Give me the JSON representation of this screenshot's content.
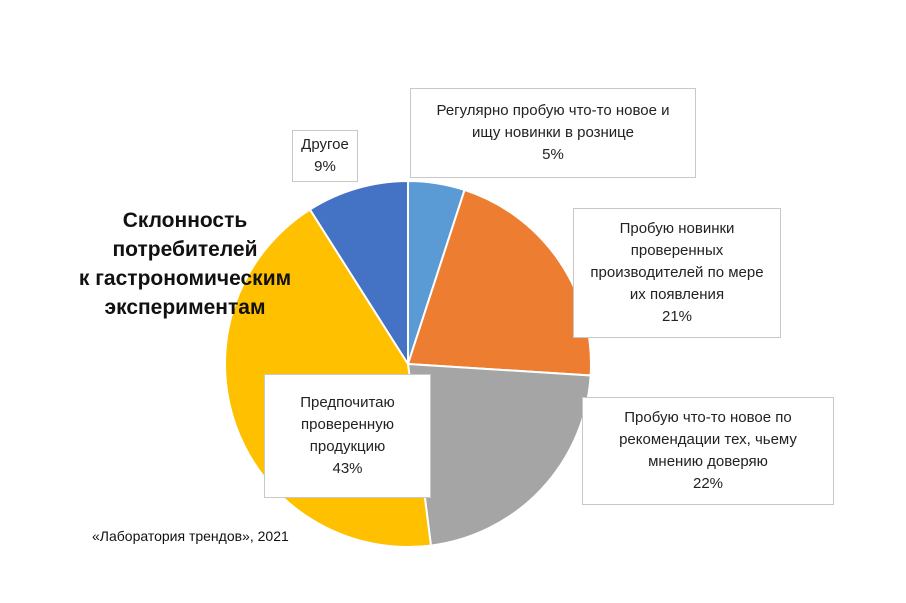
{
  "chart_data": {
    "type": "pie",
    "title_lines": [
      "Склонность",
      "потребителей",
      "к гастрономическим",
      "экспериментам"
    ],
    "source": "«Лаборатория трендов», 2021",
    "slices": [
      {
        "label_lines": [
          "Регулярно пробую что-то новое и",
          "ищу новинки в рознице"
        ],
        "value": 5,
        "value_label": "5%",
        "color": "#5B9BD5"
      },
      {
        "label_lines": [
          "Пробую новинки",
          "проверенных",
          "производителей по мере",
          "их появления"
        ],
        "value": 21,
        "value_label": "21%",
        "color": "#ED7D31"
      },
      {
        "label_lines": [
          "Пробую что-то новое по",
          "рекомендации тех, чьему",
          "мнению доверяю"
        ],
        "value": 22,
        "value_label": "22%",
        "color": "#A5A5A5"
      },
      {
        "label_lines": [
          "Предпочитаю",
          "проверенную",
          "продукцию"
        ],
        "value": 43,
        "value_label": "43%",
        "color": "#FFC000"
      },
      {
        "label_lines": [
          "Другое"
        ],
        "value": 9,
        "value_label": "9%",
        "color": "#4472C4"
      }
    ]
  }
}
